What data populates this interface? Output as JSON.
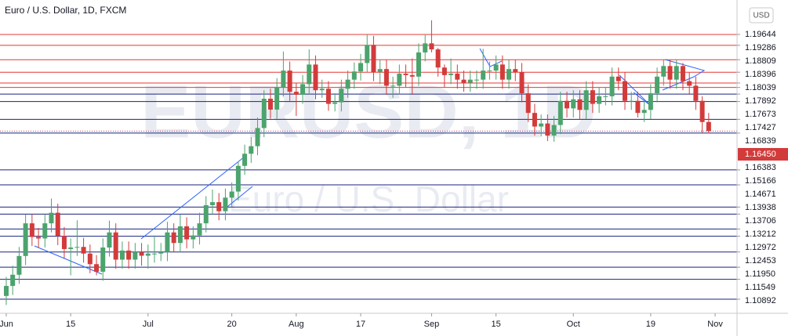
{
  "chart_data": {
    "type": "candlestick",
    "title": "Euro / U.S. Dollar, 1D, FXCM",
    "watermark": "EURUSD, 1D",
    "watermark_subtitle": "Euro / U.S. Dollar",
    "currency_button": "USD",
    "up_color": "#4ca36d",
    "down_color": "#d33b3b",
    "ylim": [
      1.10426,
      1.20783
    ],
    "xlim": [
      -0.97,
      113.4
    ],
    "yticks": [
      1.19644,
      1.19286,
      1.18809,
      1.18396,
      1.18039,
      1.17892,
      1.17673,
      1.17427,
      1.16839,
      1.16383,
      1.15166,
      1.14671,
      1.13938,
      1.13706,
      1.13212,
      1.12972,
      1.12453,
      {
        "value": 1.1195,
        "label": "1.11950"
      },
      1.11549,
      1.10892
    ],
    "last_price": {
      "value": 1.1645,
      "label": "1.16450"
    },
    "resistance_lines": [
      1.19644,
      1.19286,
      1.18809,
      1.18396,
      1.18039,
      1.17892
    ],
    "support_lines": [
      1.17673,
      1.17427,
      1.16839,
      1.16383,
      1.15166,
      1.14671,
      1.13938,
      1.13706,
      1.13212,
      1.12972,
      1.12453,
      1.1195,
      1.11549,
      1.10892
    ],
    "resistance_color": "#e53935",
    "support_color": "#1a237e",
    "xticks": [
      {
        "value": 0,
        "label": "Jun"
      },
      {
        "value": 10,
        "label": "15"
      },
      {
        "value": 22,
        "label": "Jul"
      },
      {
        "value": 35,
        "label": "20"
      },
      {
        "value": 45,
        "label": "Aug"
      },
      {
        "value": 55,
        "label": "17"
      },
      {
        "value": 66,
        "label": "Sep"
      },
      {
        "value": 76,
        "label": "15"
      },
      {
        "value": 88,
        "label": "Oct"
      },
      {
        "value": 100,
        "label": "19"
      },
      {
        "value": 110,
        "label": "Nov"
      }
    ],
    "candles": [
      [
        1.11,
        1.1163,
        1.107,
        1.1133
      ],
      [
        1.1133,
        1.12,
        1.1103,
        1.117
      ],
      [
        1.117,
        1.1262,
        1.114,
        1.1232
      ],
      [
        1.1232,
        1.137,
        1.1202,
        1.134
      ],
      [
        1.134,
        1.137,
        1.1265,
        1.1295
      ],
      [
        1.1295,
        1.1325,
        1.126,
        1.129
      ],
      [
        1.129,
        1.137,
        1.126,
        1.134
      ],
      [
        1.134,
        1.1422,
        1.131,
        1.1375
      ],
      [
        1.1375,
        1.1405,
        1.1268,
        1.1298
      ],
      [
        1.1298,
        1.1328,
        1.1225,
        1.1255
      ],
      [
        1.1255,
        1.129,
        1.1168,
        1.126
      ],
      [
        1.126,
        1.135,
        1.1232,
        1.1262
      ],
      [
        1.1262,
        1.1292,
        1.121,
        1.124
      ],
      [
        1.124,
        1.127,
        1.1175,
        1.1205
      ],
      [
        1.1205,
        1.1235,
        1.1168,
        1.118
      ],
      [
        1.118,
        1.129,
        1.115,
        1.126
      ],
      [
        1.126,
        1.1349,
        1.123,
        1.131
      ],
      [
        1.131,
        1.134,
        1.119,
        1.122
      ],
      [
        1.122,
        1.128,
        1.119,
        1.125
      ],
      [
        1.125,
        1.128,
        1.119,
        1.122
      ],
      [
        1.122,
        1.1275,
        1.119,
        1.1245
      ],
      [
        1.1245,
        1.1275,
        1.12,
        1.1233
      ],
      [
        1.1233,
        1.127,
        1.119,
        1.124
      ],
      [
        1.124,
        1.13,
        1.121,
        1.124
      ],
      [
        1.124,
        1.1275,
        1.1215,
        1.1245
      ],
      [
        1.1245,
        1.1345,
        1.1215,
        1.131
      ],
      [
        1.131,
        1.134,
        1.1245,
        1.1275
      ],
      [
        1.1275,
        1.137,
        1.1245,
        1.133
      ],
      [
        1.133,
        1.136,
        1.1257,
        1.1287
      ],
      [
        1.1287,
        1.133,
        1.1257,
        1.13
      ],
      [
        1.13,
        1.1375,
        1.127,
        1.134
      ],
      [
        1.134,
        1.143,
        1.131,
        1.14
      ],
      [
        1.14,
        1.1452,
        1.137,
        1.141
      ],
      [
        1.141,
        1.144,
        1.135,
        1.138
      ],
      [
        1.138,
        1.1455,
        1.135,
        1.1425
      ],
      [
        1.1425,
        1.1475,
        1.1395,
        1.1445
      ],
      [
        1.1445,
        1.1545,
        1.1415,
        1.153
      ],
      [
        1.153,
        1.16,
        1.15,
        1.157
      ],
      [
        1.157,
        1.1625,
        1.154,
        1.1595
      ],
      [
        1.1595,
        1.169,
        1.1565,
        1.1655
      ],
      [
        1.1655,
        1.178,
        1.1625,
        1.1752
      ],
      [
        1.1752,
        1.1785,
        1.1686,
        1.1716
      ],
      [
        1.1716,
        1.182,
        1.1686,
        1.179
      ],
      [
        1.179,
        1.1908,
        1.176,
        1.1845
      ],
      [
        1.1845,
        1.1875,
        1.1745,
        1.1775
      ],
      [
        1.1775,
        1.1805,
        1.1695,
        1.1765
      ],
      [
        1.1765,
        1.183,
        1.1735,
        1.18
      ],
      [
        1.18,
        1.1915,
        1.177,
        1.1865
      ],
      [
        1.1865,
        1.1895,
        1.175,
        1.178
      ],
      [
        1.178,
        1.1815,
        1.1755,
        1.1785
      ],
      [
        1.1785,
        1.181,
        1.1712,
        1.1735
      ],
      [
        1.1735,
        1.177,
        1.171,
        1.174
      ],
      [
        1.174,
        1.1815,
        1.171,
        1.1785
      ],
      [
        1.1785,
        1.1845,
        1.1755,
        1.1815
      ],
      [
        1.1815,
        1.1872,
        1.1785,
        1.1842
      ],
      [
        1.1842,
        1.19,
        1.1812,
        1.187
      ],
      [
        1.187,
        1.1965,
        1.184,
        1.193
      ],
      [
        1.193,
        1.196,
        1.181,
        1.184
      ],
      [
        1.184,
        1.188,
        1.18,
        1.185
      ],
      [
        1.185,
        1.188,
        1.1765,
        1.1795
      ],
      [
        1.1795,
        1.1825,
        1.1755,
        1.1795
      ],
      [
        1.1795,
        1.1865,
        1.1765,
        1.1835
      ],
      [
        1.1835,
        1.1865,
        1.179,
        1.183
      ],
      [
        1.183,
        1.1885,
        1.1765,
        1.1825
      ],
      [
        1.1825,
        1.1935,
        1.1795,
        1.1905
      ],
      [
        1.1905,
        1.1965,
        1.1875,
        1.1935
      ],
      [
        1.1935,
        1.2011,
        1.1905,
        1.1915
      ],
      [
        1.1915,
        1.192,
        1.1825,
        1.1855
      ],
      [
        1.1855,
        1.1865,
        1.179,
        1.183
      ],
      [
        1.183,
        1.1885,
        1.18,
        1.1835
      ],
      [
        1.1835,
        1.1865,
        1.1785,
        1.1815
      ],
      [
        1.1815,
        1.1845,
        1.1775,
        1.1805
      ],
      [
        1.1805,
        1.1845,
        1.1775,
        1.1815
      ],
      [
        1.1815,
        1.1845,
        1.1785,
        1.1815
      ],
      [
        1.1815,
        1.1917,
        1.1785,
        1.1845
      ],
      [
        1.1845,
        1.1875,
        1.1815,
        1.1845
      ],
      [
        1.1845,
        1.1895,
        1.1815,
        1.1865
      ],
      [
        1.1865,
        1.1895,
        1.1785,
        1.1815
      ],
      [
        1.1815,
        1.188,
        1.1785,
        1.185
      ],
      [
        1.185,
        1.188,
        1.181,
        1.184
      ],
      [
        1.184,
        1.187,
        1.174,
        1.177
      ],
      [
        1.177,
        1.18,
        1.1675,
        1.1705
      ],
      [
        1.1705,
        1.1735,
        1.163,
        1.166
      ],
      [
        1.166,
        1.17,
        1.1627,
        1.167
      ],
      [
        1.167,
        1.17,
        1.1612,
        1.163
      ],
      [
        1.163,
        1.1695,
        1.161,
        1.1665
      ],
      [
        1.1665,
        1.1775,
        1.1635,
        1.1745
      ],
      [
        1.1745,
        1.1775,
        1.169,
        1.172
      ],
      [
        1.172,
        1.178,
        1.169,
        1.175
      ],
      [
        1.175,
        1.178,
        1.1685,
        1.1715
      ],
      [
        1.1715,
        1.181,
        1.1685,
        1.178
      ],
      [
        1.178,
        1.181,
        1.1705,
        1.1735
      ],
      [
        1.1735,
        1.179,
        1.1705,
        1.176
      ],
      [
        1.176,
        1.179,
        1.173,
        1.176
      ],
      [
        1.176,
        1.1855,
        1.173,
        1.1825
      ],
      [
        1.1825,
        1.1855,
        1.178,
        1.181
      ],
      [
        1.181,
        1.184,
        1.1715,
        1.1745
      ],
      [
        1.1745,
        1.1775,
        1.1715,
        1.1745
      ],
      [
        1.1745,
        1.1775,
        1.169,
        1.1705
      ],
      [
        1.1705,
        1.1745,
        1.1675,
        1.1715
      ],
      [
        1.1715,
        1.18,
        1.1685,
        1.177
      ],
      [
        1.177,
        1.1855,
        1.174,
        1.1825
      ],
      [
        1.1825,
        1.188,
        1.1795,
        1.186
      ],
      [
        1.186,
        1.188,
        1.1785,
        1.1815
      ],
      [
        1.1815,
        1.188,
        1.1785,
        1.186
      ],
      [
        1.186,
        1.187,
        1.178,
        1.181
      ],
      [
        1.181,
        1.184,
        1.1765,
        1.1795
      ],
      [
        1.1795,
        1.1825,
        1.1715,
        1.1745
      ],
      [
        1.1745,
        1.176,
        1.164,
        1.1675
      ],
      [
        1.1675,
        1.1705,
        1.1638,
        1.1645
      ]
    ]
  }
}
